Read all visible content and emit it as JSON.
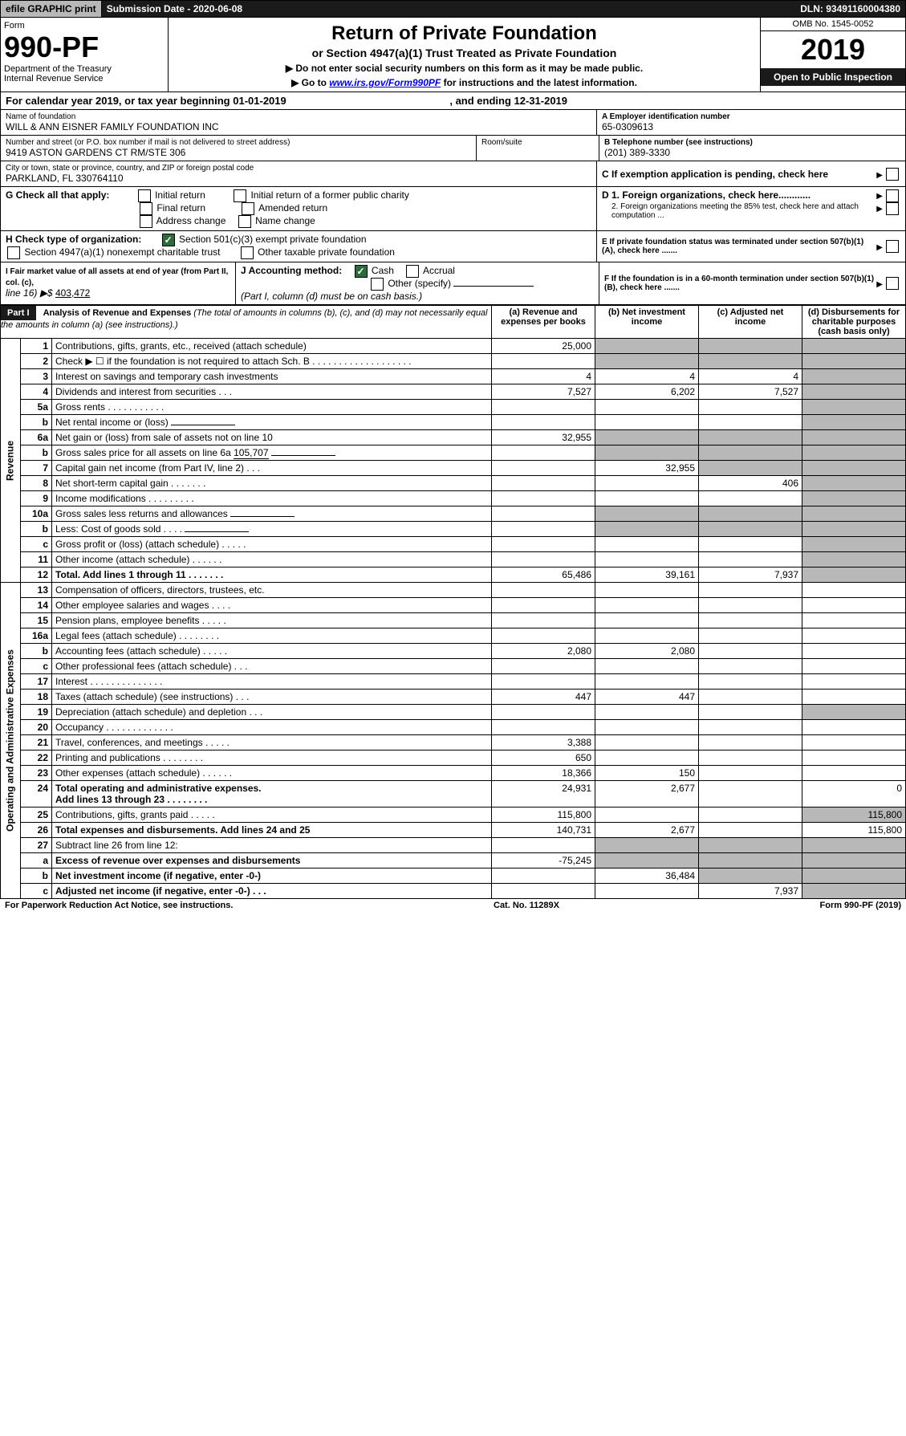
{
  "topbar": {
    "efile": "efile GRAPHIC print",
    "subdate": "Submission Date - 2020-06-08",
    "dln": "DLN: 93491160004380"
  },
  "hdr": {
    "form": "Form",
    "num": "990-PF",
    "dept": "Department of the Treasury",
    "irs": "Internal Revenue Service",
    "title": "Return of Private Foundation",
    "sub": "or Section 4947(a)(1) Trust Treated as Private Foundation",
    "note1": "▶ Do not enter social security numbers on this form as it may be made public.",
    "note2_pre": "▶ Go to ",
    "note2_link": "www.irs.gov/Form990PF",
    "note2_post": " for instructions and the latest information.",
    "omb": "OMB No. 1545-0052",
    "year": "2019",
    "open": "Open to Public Inspection"
  },
  "cal": {
    "pre": "For calendar year 2019, or tax year beginning ",
    "begin": "01-01-2019",
    "mid": " , and ending ",
    "end": "12-31-2019"
  },
  "id": {
    "name_lbl": "Name of foundation",
    "name": "WILL & ANN EISNER FAMILY FOUNDATION INC",
    "ein_lbl": "A Employer identification number",
    "ein": "65-0309613",
    "addr_lbl": "Number and street (or P.O. box number if mail is not delivered to street address)",
    "room": "Room/suite",
    "addr": "9419 ASTON GARDENS CT RM/STE 306",
    "tel_lbl": "B Telephone number (see instructions)",
    "tel": "(201) 389-3330",
    "city_lbl": "City or town, state or province, country, and ZIP or foreign postal code",
    "city": "PARKLAND, FL  330764110",
    "c": "C If exemption application is pending, check here"
  },
  "g": {
    "lbl": "G Check all that apply:",
    "i": "Initial return",
    "ip": "Initial return of a former public charity",
    "f": "Final return",
    "a": "Amended return",
    "ac": "Address change",
    "n": "Name change"
  },
  "d": {
    "d1": "D 1. Foreign organizations, check here............",
    "d2": "2. Foreign organizations meeting the 85% test, check here and attach computation ..."
  },
  "h": {
    "lbl": "H Check type of organization:",
    "s501": "Section 501(c)(3) exempt private foundation",
    "s4947": "Section 4947(a)(1) nonexempt charitable trust",
    "other": "Other taxable private foundation"
  },
  "e": "E If private foundation status was terminated under section 507(b)(1)(A), check here .......",
  "i": {
    "lbl": "I Fair market value of all assets at end of year (from Part II, col. (c),",
    "line": "line 16) ▶$",
    "val": "403,472"
  },
  "j": {
    "lbl": "J Accounting method:",
    "cash": "Cash",
    "accrual": "Accrual",
    "other": "Other (specify)",
    "note": "(Part I, column (d) must be on cash basis.)"
  },
  "f": "F If the foundation is in a 60-month termination under section 507(b)(1)(B), check here .......",
  "p1": {
    "title": "Part I",
    "head": "Analysis of Revenue and Expenses",
    "hnote": "(The total of amounts in columns (b), (c), and (d) may not necessarily equal the amounts in column (a) (see instructions).)",
    "cola": "(a) Revenue and expenses per books",
    "colb": "(b) Net investment income",
    "colc": "(c) Adjusted net income",
    "cold": "(d) Disbursements for charitable purposes (cash basis only)"
  },
  "rows": {
    "1": {
      "n": "1",
      "d": "Contributions, gifts, grants, etc., received (attach schedule)",
      "a": "25,000"
    },
    "2": {
      "n": "2",
      "d": "Check ▶ ☐ if the foundation is not required to attach Sch. B  . . . . . . . . . . . . . . . . . . ."
    },
    "3": {
      "n": "3",
      "d": "Interest on savings and temporary cash investments",
      "a": "4",
      "b": "4",
      "c": "4"
    },
    "4": {
      "n": "4",
      "d": "Dividends and interest from securities  .  .  .",
      "a": "7,527",
      "b": "6,202",
      "c": "7,527"
    },
    "5a": {
      "n": "5a",
      "d": "Gross rents  .  .  .  .  .  .  .  .  .  .  ."
    },
    "5b": {
      "n": "b",
      "d": "Net rental income or (loss)"
    },
    "6a": {
      "n": "6a",
      "d": "Net gain or (loss) from sale of assets not on line 10",
      "a": "32,955"
    },
    "6b": {
      "n": "b",
      "d": "Gross sales price for all assets on line 6a",
      "v": "105,707"
    },
    "7": {
      "n": "7",
      "d": "Capital gain net income (from Part IV, line 2)  .  .  .",
      "b": "32,955"
    },
    "8": {
      "n": "8",
      "d": "Net short-term capital gain  .  .  .  .  .  .  .",
      "c": "406"
    },
    "9": {
      "n": "9",
      "d": "Income modifications  .  .  .  .  .  .  .  .  ."
    },
    "10a": {
      "n": "10a",
      "d": "Gross sales less returns and allowances"
    },
    "10b": {
      "n": "b",
      "d": "Less: Cost of goods sold  .  .  .  ."
    },
    "10c": {
      "n": "c",
      "d": "Gross profit or (loss) (attach schedule)  .  .  .  .  ."
    },
    "11": {
      "n": "11",
      "d": "Other income (attach schedule)  .  .  .  .  .  ."
    },
    "12": {
      "n": "12",
      "d": "Total. Add lines 1 through 11  .  .  .  .  .  .  .",
      "a": "65,486",
      "b": "39,161",
      "c": "7,937"
    },
    "13": {
      "n": "13",
      "d": "Compensation of officers, directors, trustees, etc."
    },
    "14": {
      "n": "14",
      "d": "Other employee salaries and wages  .  .  .  ."
    },
    "15": {
      "n": "15",
      "d": "Pension plans, employee benefits  .  .  .  .  ."
    },
    "16a": {
      "n": "16a",
      "d": "Legal fees (attach schedule)  .  .  .  .  .  .  .  ."
    },
    "16b": {
      "n": "b",
      "d": "Accounting fees (attach schedule)  .  .  .  .  .",
      "a": "2,080",
      "b": "2,080"
    },
    "16c": {
      "n": "c",
      "d": "Other professional fees (attach schedule)  .  .  ."
    },
    "17": {
      "n": "17",
      "d": "Interest  .  .  .  .  .  .  .  .  .  .  .  .  .  ."
    },
    "18": {
      "n": "18",
      "d": "Taxes (attach schedule) (see instructions)  .  .  .",
      "a": "447",
      "b": "447"
    },
    "19": {
      "n": "19",
      "d": "Depreciation (attach schedule) and depletion  .  .  ."
    },
    "20": {
      "n": "20",
      "d": "Occupancy  .  .  .  .  .  .  .  .  .  .  .  .  ."
    },
    "21": {
      "n": "21",
      "d": "Travel, conferences, and meetings  .  .  .  .  .",
      "a": "3,388"
    },
    "22": {
      "n": "22",
      "d": "Printing and publications  .  .  .  .  .  .  .  .",
      "a": "650"
    },
    "23": {
      "n": "23",
      "d": "Other expenses (attach schedule)  .  .  .  .  .  .",
      "a": "18,366",
      "b": "150"
    },
    "24": {
      "n": "24",
      "d": "Total operating and administrative expenses.",
      "d2": "Add lines 13 through 23  .  .  .  .  .  .  .  .",
      "a": "24,931",
      "b": "2,677",
      "dd": "0"
    },
    "25": {
      "n": "25",
      "d": "Contributions, gifts, grants paid  .  .  .  .  .",
      "a": "115,800",
      "dd": "115,800"
    },
    "26": {
      "n": "26",
      "d": "Total expenses and disbursements. Add lines 24 and 25",
      "a": "140,731",
      "b": "2,677",
      "dd": "115,800"
    },
    "27": {
      "n": "27",
      "d": "Subtract line 26 from line 12:"
    },
    "27a": {
      "n": "a",
      "d": "Excess of revenue over expenses and disbursements",
      "a": "-75,245"
    },
    "27b": {
      "n": "b",
      "d": "Net investment income (if negative, enter -0-)",
      "b": "36,484"
    },
    "27c": {
      "n": "c",
      "d": "Adjusted net income (if negative, enter -0-)  .  .  .",
      "c": "7,937"
    }
  },
  "sections": {
    "rev": "Revenue",
    "exp": "Operating and Administrative Expenses"
  },
  "footer": {
    "l": "For Paperwork Reduction Act Notice, see instructions.",
    "m": "Cat. No. 11289X",
    "r": "Form 990-PF (2019)"
  }
}
